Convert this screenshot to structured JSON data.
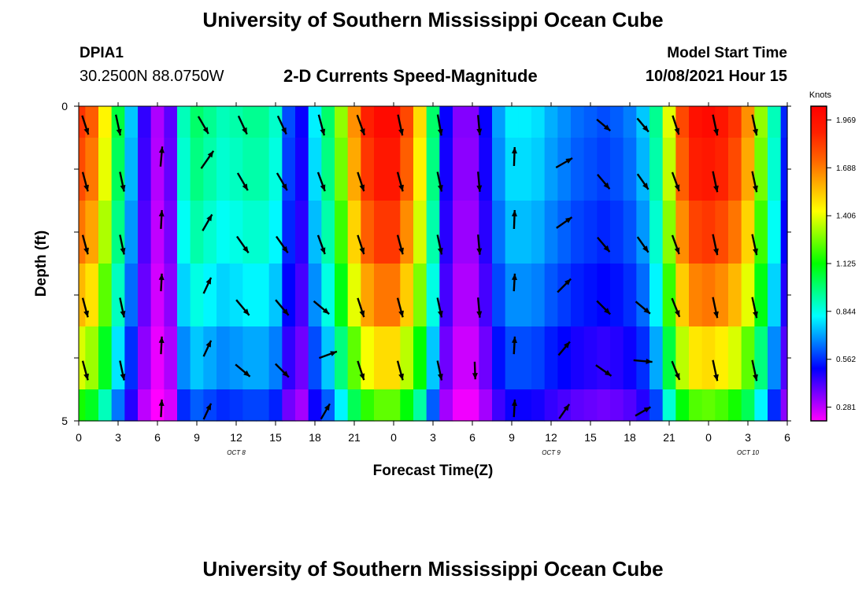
{
  "header": {
    "title": "University of Southern Mississippi Ocean Cube",
    "station_name": "DPIA1",
    "station_coords": "30.2500N  88.0750W",
    "plot_title": "2-D Currents Speed-Magnitude",
    "model_start_label": "Model Start Time",
    "model_start_value": "10/08/2021 Hour 15"
  },
  "footer": {
    "title": "University of Southern Mississippi Ocean Cube"
  },
  "chart_data": {
    "type": "heatmap",
    "title": "2-D Currents Speed-Magnitude",
    "xlabel": "Forecast Time(Z)",
    "ylabel": "Depth (ft)",
    "x_tick_labels": [
      "0",
      "3",
      "6",
      "9",
      "12",
      "15",
      "18",
      "21",
      "0",
      "3",
      "6",
      "9",
      "12",
      "15",
      "18",
      "21",
      "0",
      "3",
      "6"
    ],
    "x_hours_from_oct8_00z": [
      0,
      3,
      6,
      9,
      12,
      15,
      18,
      21,
      24,
      27,
      30,
      33,
      36,
      39,
      42,
      45,
      48,
      51,
      54
    ],
    "xlim_hours": [
      0,
      54
    ],
    "date_labels": [
      {
        "label": "OCT 8",
        "hour": 12
      },
      {
        "label": "OCT 9",
        "hour": 36
      },
      {
        "label": "OCT 10",
        "hour": 51
      }
    ],
    "y_tick_labels": [
      "0",
      "5"
    ],
    "ylim_ft": [
      0,
      5
    ],
    "depth_levels_ft": [
      0,
      1,
      2,
      3,
      4,
      5
    ],
    "colorbar": {
      "label": "Knots",
      "ticks": [
        0.281,
        0.562,
        0.844,
        1.125,
        1.406,
        1.688,
        1.969
      ],
      "tick_labels": [
        "0.281",
        "0.562",
        "0.844",
        "1.125",
        "1.406",
        "1.688",
        "1.969"
      ],
      "range": [
        0.2,
        2.05
      ],
      "colors": [
        "#ff00ff",
        "#8000ff",
        "#0000ff",
        "#0080ff",
        "#00ffff",
        "#00ff80",
        "#00ff00",
        "#80ff00",
        "#ffff00",
        "#ffb000",
        "#ff6000",
        "#ff2000",
        "#ff0000"
      ]
    },
    "speed_profile_knots": {
      "hours": [
        0,
        1,
        2,
        3,
        4,
        5,
        6,
        7,
        8,
        9,
        10,
        11,
        12,
        13,
        14,
        15,
        16,
        17,
        18,
        19,
        20,
        21,
        22,
        23,
        24,
        25,
        26,
        27,
        28,
        29,
        30,
        31,
        32,
        33,
        34,
        35,
        36,
        37,
        38,
        39,
        40,
        41,
        42,
        43,
        44,
        45,
        46,
        47,
        48,
        49,
        50,
        51,
        52,
        53,
        54
      ],
      "surface": [
        1.85,
        1.75,
        1.45,
        1.05,
        0.75,
        0.45,
        0.3,
        0.4,
        0.9,
        1.0,
        0.95,
        0.9,
        0.92,
        0.95,
        0.95,
        0.88,
        0.6,
        0.5,
        0.8,
        1.0,
        1.3,
        1.65,
        1.9,
        2.0,
        2.0,
        1.8,
        1.5,
        1.0,
        0.5,
        0.35,
        0.35,
        0.5,
        0.7,
        0.8,
        0.8,
        0.78,
        0.72,
        0.68,
        0.64,
        0.62,
        0.6,
        0.62,
        0.66,
        0.75,
        0.95,
        1.4,
        1.8,
        1.97,
        2.0,
        1.95,
        1.85,
        1.65,
        1.3,
        0.9,
        0.55
      ],
      "depth_factor": [
        1.0,
        0.97,
        0.92,
        0.85,
        0.75,
        0.62
      ]
    },
    "vectors": [
      {
        "hour": 0.5,
        "depth_ft": 0.3,
        "dir_deg": 162,
        "len": 0.8
      },
      {
        "hour": 3,
        "depth_ft": 0.3,
        "dir_deg": 168,
        "len": 0.85
      },
      {
        "hour": 9.5,
        "depth_ft": 0.3,
        "dir_deg": 150,
        "len": 0.8
      },
      {
        "hour": 12.5,
        "depth_ft": 0.3,
        "dir_deg": 155,
        "len": 0.8
      },
      {
        "hour": 15.5,
        "depth_ft": 0.3,
        "dir_deg": 155,
        "len": 0.8
      },
      {
        "hour": 18.5,
        "depth_ft": 0.3,
        "dir_deg": 165,
        "len": 0.85
      },
      {
        "hour": 21.5,
        "depth_ft": 0.3,
        "dir_deg": 160,
        "len": 0.85
      },
      {
        "hour": 24.5,
        "depth_ft": 0.3,
        "dir_deg": 168,
        "len": 0.85
      },
      {
        "hour": 27.5,
        "depth_ft": 0.3,
        "dir_deg": 170,
        "len": 0.85
      },
      {
        "hour": 30.5,
        "depth_ft": 0.3,
        "dir_deg": 175,
        "len": 0.8
      },
      {
        "hour": 40,
        "depth_ft": 0.3,
        "dir_deg": 130,
        "len": 0.7
      },
      {
        "hour": 43,
        "depth_ft": 0.3,
        "dir_deg": 140,
        "len": 0.7
      },
      {
        "hour": 45.5,
        "depth_ft": 0.3,
        "dir_deg": 162,
        "len": 0.8
      },
      {
        "hour": 48.5,
        "depth_ft": 0.3,
        "dir_deg": 168,
        "len": 0.85
      },
      {
        "hour": 51.5,
        "depth_ft": 0.3,
        "dir_deg": 168,
        "len": 0.85
      },
      {
        "hour": 0.5,
        "depth_ft": 1.2,
        "dir_deg": 165,
        "len": 0.8
      },
      {
        "hour": 3.3,
        "depth_ft": 1.2,
        "dir_deg": 168,
        "len": 0.8
      },
      {
        "hour": 6.3,
        "depth_ft": 0.8,
        "dir_deg": 5,
        "len": 0.8
      },
      {
        "hour": 9.8,
        "depth_ft": 0.85,
        "dir_deg": 35,
        "len": 0.85
      },
      {
        "hour": 12.5,
        "depth_ft": 1.2,
        "dir_deg": 150,
        "len": 0.8
      },
      {
        "hour": 15.5,
        "depth_ft": 1.2,
        "dir_deg": 150,
        "len": 0.8
      },
      {
        "hour": 18.5,
        "depth_ft": 1.2,
        "dir_deg": 160,
        "len": 0.8
      },
      {
        "hour": 21.5,
        "depth_ft": 1.2,
        "dir_deg": 162,
        "len": 0.8
      },
      {
        "hour": 24.5,
        "depth_ft": 1.2,
        "dir_deg": 165,
        "len": 0.8
      },
      {
        "hour": 27.5,
        "depth_ft": 1.2,
        "dir_deg": 168,
        "len": 0.8
      },
      {
        "hour": 30.5,
        "depth_ft": 1.2,
        "dir_deg": 175,
        "len": 0.8
      },
      {
        "hour": 33.2,
        "depth_ft": 0.8,
        "dir_deg": 2,
        "len": 0.75
      },
      {
        "hour": 37,
        "depth_ft": 0.9,
        "dir_deg": 60,
        "len": 0.75
      },
      {
        "hour": 40,
        "depth_ft": 1.2,
        "dir_deg": 140,
        "len": 0.75
      },
      {
        "hour": 43,
        "depth_ft": 1.2,
        "dir_deg": 145,
        "len": 0.75
      },
      {
        "hour": 45.5,
        "depth_ft": 1.2,
        "dir_deg": 160,
        "len": 0.8
      },
      {
        "hour": 48.5,
        "depth_ft": 1.2,
        "dir_deg": 168,
        "len": 0.85
      },
      {
        "hour": 51.5,
        "depth_ft": 1.2,
        "dir_deg": 168,
        "len": 0.85
      },
      {
        "hour": 0.5,
        "depth_ft": 2.2,
        "dir_deg": 165,
        "len": 0.8
      },
      {
        "hour": 3.3,
        "depth_ft": 2.2,
        "dir_deg": 168,
        "len": 0.8
      },
      {
        "hour": 6.3,
        "depth_ft": 1.8,
        "dir_deg": 3,
        "len": 0.75
      },
      {
        "hour": 9.8,
        "depth_ft": 1.85,
        "dir_deg": 30,
        "len": 0.75
      },
      {
        "hour": 12.5,
        "depth_ft": 2.2,
        "dir_deg": 145,
        "len": 0.8
      },
      {
        "hour": 15.5,
        "depth_ft": 2.2,
        "dir_deg": 145,
        "len": 0.8
      },
      {
        "hour": 18.5,
        "depth_ft": 2.2,
        "dir_deg": 160,
        "len": 0.8
      },
      {
        "hour": 21.5,
        "depth_ft": 2.2,
        "dir_deg": 162,
        "len": 0.8
      },
      {
        "hour": 24.5,
        "depth_ft": 2.2,
        "dir_deg": 165,
        "len": 0.8
      },
      {
        "hour": 27.5,
        "depth_ft": 2.2,
        "dir_deg": 168,
        "len": 0.8
      },
      {
        "hour": 30.5,
        "depth_ft": 2.2,
        "dir_deg": 175,
        "len": 0.8
      },
      {
        "hour": 33.2,
        "depth_ft": 1.8,
        "dir_deg": 2,
        "len": 0.75
      },
      {
        "hour": 37,
        "depth_ft": 1.85,
        "dir_deg": 55,
        "len": 0.75
      },
      {
        "hour": 40,
        "depth_ft": 2.2,
        "dir_deg": 140,
        "len": 0.75
      },
      {
        "hour": 43,
        "depth_ft": 2.2,
        "dir_deg": 145,
        "len": 0.75
      },
      {
        "hour": 45.5,
        "depth_ft": 2.2,
        "dir_deg": 160,
        "len": 0.8
      },
      {
        "hour": 48.5,
        "depth_ft": 2.2,
        "dir_deg": 168,
        "len": 0.85
      },
      {
        "hour": 51.5,
        "depth_ft": 2.2,
        "dir_deg": 168,
        "len": 0.85
      },
      {
        "hour": 0.5,
        "depth_ft": 3.2,
        "dir_deg": 165,
        "len": 0.8
      },
      {
        "hour": 3.3,
        "depth_ft": 3.2,
        "dir_deg": 168,
        "len": 0.8
      },
      {
        "hour": 6.3,
        "depth_ft": 2.8,
        "dir_deg": 3,
        "len": 0.7
      },
      {
        "hour": 9.8,
        "depth_ft": 2.85,
        "dir_deg": 25,
        "len": 0.7
      },
      {
        "hour": 12.5,
        "depth_ft": 3.2,
        "dir_deg": 140,
        "len": 0.8
      },
      {
        "hour": 15.5,
        "depth_ft": 3.2,
        "dir_deg": 140,
        "len": 0.8
      },
      {
        "hour": 18.5,
        "depth_ft": 3.2,
        "dir_deg": 130,
        "len": 0.8
      },
      {
        "hour": 21.5,
        "depth_ft": 3.2,
        "dir_deg": 162,
        "len": 0.8
      },
      {
        "hour": 24.5,
        "depth_ft": 3.2,
        "dir_deg": 165,
        "len": 0.8
      },
      {
        "hour": 27.5,
        "depth_ft": 3.2,
        "dir_deg": 168,
        "len": 0.8
      },
      {
        "hour": 30.5,
        "depth_ft": 3.2,
        "dir_deg": 175,
        "len": 0.8
      },
      {
        "hour": 33.2,
        "depth_ft": 2.8,
        "dir_deg": 3,
        "len": 0.7
      },
      {
        "hour": 37,
        "depth_ft": 2.85,
        "dir_deg": 45,
        "len": 0.75
      },
      {
        "hour": 40,
        "depth_ft": 3.2,
        "dir_deg": 135,
        "len": 0.75
      },
      {
        "hour": 43,
        "depth_ft": 3.2,
        "dir_deg": 130,
        "len": 0.75
      },
      {
        "hour": 45.5,
        "depth_ft": 3.2,
        "dir_deg": 158,
        "len": 0.8
      },
      {
        "hour": 48.5,
        "depth_ft": 3.2,
        "dir_deg": 168,
        "len": 0.85
      },
      {
        "hour": 51.5,
        "depth_ft": 3.2,
        "dir_deg": 168,
        "len": 0.85
      },
      {
        "hour": 0.5,
        "depth_ft": 4.2,
        "dir_deg": 165,
        "len": 0.8
      },
      {
        "hour": 3.3,
        "depth_ft": 4.2,
        "dir_deg": 168,
        "len": 0.8
      },
      {
        "hour": 6.3,
        "depth_ft": 3.8,
        "dir_deg": 3,
        "len": 0.7
      },
      {
        "hour": 9.8,
        "depth_ft": 3.85,
        "dir_deg": 25,
        "len": 0.7
      },
      {
        "hour": 12.5,
        "depth_ft": 4.2,
        "dir_deg": 130,
        "len": 0.75
      },
      {
        "hour": 15.5,
        "depth_ft": 4.2,
        "dir_deg": 135,
        "len": 0.75
      },
      {
        "hour": 19,
        "depth_ft": 3.95,
        "dir_deg": 70,
        "len": 0.75
      },
      {
        "hour": 21.5,
        "depth_ft": 4.2,
        "dir_deg": 162,
        "len": 0.8
      },
      {
        "hour": 24.5,
        "depth_ft": 4.2,
        "dir_deg": 165,
        "len": 0.8
      },
      {
        "hour": 27.5,
        "depth_ft": 4.2,
        "dir_deg": 168,
        "len": 0.8
      },
      {
        "hour": 30.2,
        "depth_ft": 4.2,
        "dir_deg": 178,
        "len": 0.7
      },
      {
        "hour": 33.2,
        "depth_ft": 3.8,
        "dir_deg": 3,
        "len": 0.7
      },
      {
        "hour": 37,
        "depth_ft": 3.85,
        "dir_deg": 40,
        "len": 0.7
      },
      {
        "hour": 40,
        "depth_ft": 4.2,
        "dir_deg": 125,
        "len": 0.75
      },
      {
        "hour": 43,
        "depth_ft": 4.05,
        "dir_deg": 95,
        "len": 0.75
      },
      {
        "hour": 45.5,
        "depth_ft": 4.2,
        "dir_deg": 158,
        "len": 0.8
      },
      {
        "hour": 48.5,
        "depth_ft": 4.2,
        "dir_deg": 168,
        "len": 0.85
      },
      {
        "hour": 51.5,
        "depth_ft": 4.2,
        "dir_deg": 168,
        "len": 0.85
      },
      {
        "hour": 6.3,
        "depth_ft": 4.8,
        "dir_deg": 3,
        "len": 0.7
      },
      {
        "hour": 9.8,
        "depth_ft": 4.85,
        "dir_deg": 25,
        "len": 0.7
      },
      {
        "hour": 18.8,
        "depth_ft": 4.85,
        "dir_deg": 30,
        "len": 0.7
      },
      {
        "hour": 33.2,
        "depth_ft": 4.8,
        "dir_deg": 3,
        "len": 0.7
      },
      {
        "hour": 37,
        "depth_ft": 4.85,
        "dir_deg": 35,
        "len": 0.7
      },
      {
        "hour": 43,
        "depth_ft": 4.85,
        "dir_deg": 60,
        "len": 0.7
      }
    ]
  }
}
